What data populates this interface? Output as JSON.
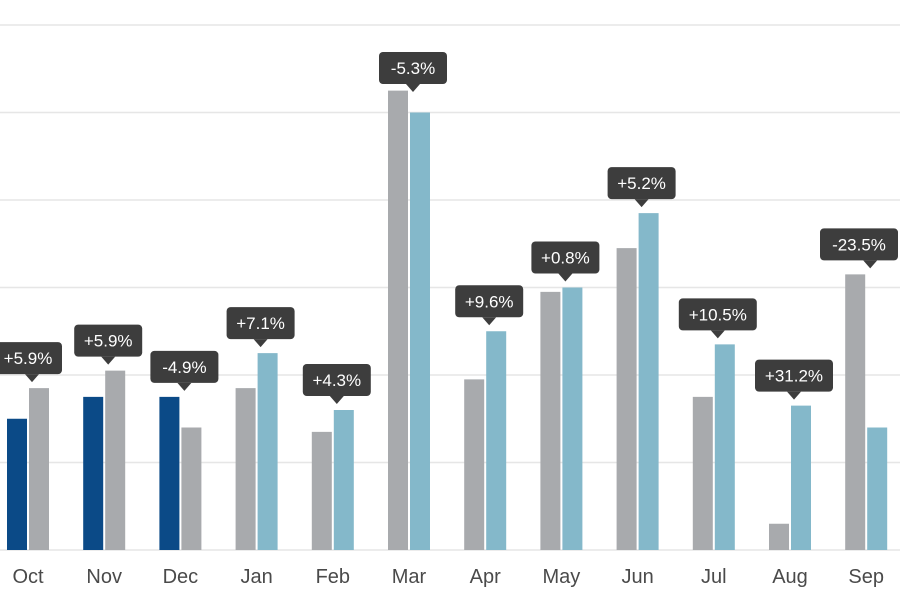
{
  "chart_data": {
    "type": "bar",
    "categories": [
      "Oct",
      "Nov",
      "Dec",
      "Jan",
      "Feb",
      "Mar",
      "Apr",
      "May",
      "Jun",
      "Jul",
      "Aug",
      "Sep"
    ],
    "series": [
      {
        "values": [
          30,
          35,
          35,
          null,
          null,
          null,
          null,
          null,
          null,
          null,
          null,
          null
        ]
      },
      {
        "values": [
          37,
          41,
          28,
          37,
          27,
          105,
          39,
          59,
          69,
          35,
          6,
          63
        ]
      },
      {
        "values": [
          null,
          null,
          null,
          45,
          32,
          100,
          50,
          60,
          77,
          47,
          33,
          28
        ]
      }
    ],
    "callouts": [
      "+5.9%",
      "+5.9%",
      "-4.9%",
      "+7.1%",
      "+4.3%",
      "-5.3%",
      "+9.6%",
      "+0.8%",
      "+5.2%",
      "+10.5%",
      "+31.2%",
      "-23.5%"
    ],
    "ylim": [
      0,
      120
    ],
    "grid": true,
    "legend": "none"
  },
  "colors": {
    "dark_blue": "#0b4a87",
    "gray": "#a8aaad",
    "light_blue": "#84b8ca",
    "callout": "#3d3d3d",
    "grid": "#e6e6e6",
    "axis_text": "#4a4a4a"
  }
}
